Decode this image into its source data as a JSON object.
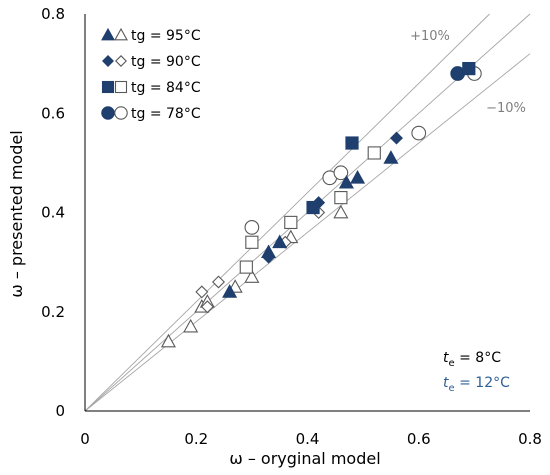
{
  "chart_data": {
    "type": "scatter",
    "xlabel": "ω – oryginal model",
    "ylabel": "ω – presented model",
    "xlim": [
      0,
      0.8
    ],
    "ylim": [
      0,
      0.8
    ],
    "x_ticks": [
      "0",
      "0.2",
      "0.4",
      "0.6",
      "0.8"
    ],
    "y_ticks": [
      "0",
      "0.2",
      "0.4",
      "0.6",
      "0.8"
    ],
    "grid": false,
    "legend_position": "top-left",
    "colors": {
      "filled": "#1f3f6e",
      "open_fill": "#ffffff",
      "stroke": "#595959",
      "ref_line": "#a6a6a6",
      "te12": "#2e5f95"
    },
    "reference_lines": [
      {
        "label": "",
        "slope": 1.0
      },
      {
        "label": "+10%",
        "slope": 1.1
      },
      {
        "label": "−10%",
        "slope": 0.9
      }
    ],
    "te_labels": [
      {
        "symbol": "t",
        "sub": "e",
        "text": " = 8°C",
        "color": "#000000"
      },
      {
        "symbol": "t",
        "sub": "e",
        "text": " = 12°C",
        "color": "#2e5f95"
      }
    ],
    "series": [
      {
        "name": "tg = 95°C",
        "marker": "triangle",
        "filled": [
          [
            0.26,
            0.24
          ],
          [
            0.33,
            0.32
          ],
          [
            0.35,
            0.34
          ],
          [
            0.47,
            0.46
          ],
          [
            0.49,
            0.47
          ],
          [
            0.55,
            0.51
          ]
        ],
        "open": [
          [
            0.15,
            0.14
          ],
          [
            0.19,
            0.17
          ],
          [
            0.21,
            0.21
          ],
          [
            0.22,
            0.22
          ],
          [
            0.27,
            0.25
          ],
          [
            0.3,
            0.27
          ],
          [
            0.37,
            0.35
          ],
          [
            0.46,
            0.4
          ]
        ]
      },
      {
        "name": "tg = 90°C",
        "marker": "diamond",
        "filled": [
          [
            0.33,
            0.31
          ],
          [
            0.42,
            0.42
          ],
          [
            0.56,
            0.55
          ]
        ],
        "open": [
          [
            0.21,
            0.24
          ],
          [
            0.22,
            0.21
          ],
          [
            0.24,
            0.26
          ],
          [
            0.36,
            0.34
          ],
          [
            0.42,
            0.4
          ]
        ]
      },
      {
        "name": "tg = 84°C",
        "marker": "square",
        "filled": [
          [
            0.41,
            0.41
          ],
          [
            0.48,
            0.54
          ],
          [
            0.69,
            0.69
          ]
        ],
        "open": [
          [
            0.29,
            0.29
          ],
          [
            0.3,
            0.34
          ],
          [
            0.37,
            0.38
          ],
          [
            0.46,
            0.43
          ],
          [
            0.52,
            0.52
          ]
        ]
      },
      {
        "name": "tg = 78°C",
        "marker": "circle",
        "filled": [
          [
            0.67,
            0.68
          ]
        ],
        "open": [
          [
            0.3,
            0.37
          ],
          [
            0.44,
            0.47
          ],
          [
            0.46,
            0.48
          ],
          [
            0.6,
            0.56
          ],
          [
            0.7,
            0.68
          ]
        ]
      }
    ]
  }
}
